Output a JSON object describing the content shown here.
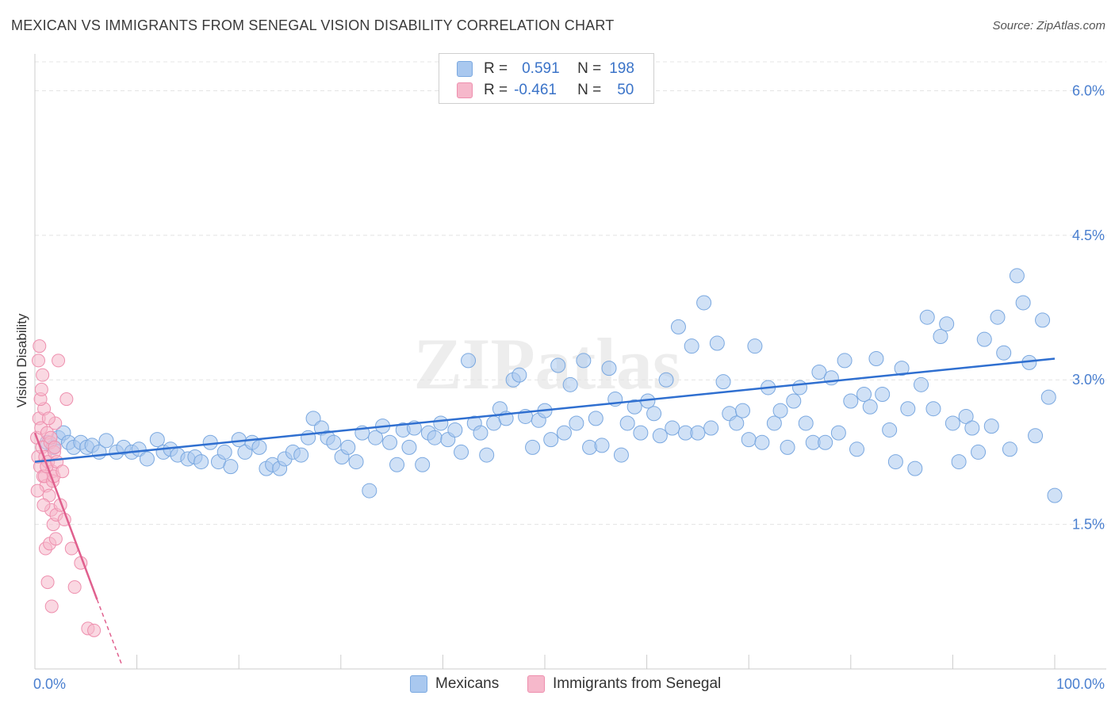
{
  "title": "MEXICAN VS IMMIGRANTS FROM SENEGAL VISION DISABILITY CORRELATION CHART",
  "source": "Source: ZipAtlas.com",
  "watermark": "ZIPatlas",
  "legend": {
    "rows": [
      {
        "r_label": "R =",
        "r_value": "0.591",
        "n_label": "N =",
        "n_value": "198"
      },
      {
        "r_label": "R =",
        "r_value": "-0.461",
        "n_label": "N =",
        "n_value": "50"
      }
    ]
  },
  "bottom_legend": [
    "Mexicans",
    "Immigrants from Senegal"
  ],
  "colors": {
    "blue_fill": "#a9c8ef",
    "blue_stroke": "#7aa8e0",
    "blue_line": "#2f6fd0",
    "pink_fill": "#f6b8cb",
    "pink_stroke": "#ee8fae",
    "pink_line": "#e0608e",
    "axis_label": "#4a7fcf",
    "grid": "#e4e4e4"
  },
  "chart_data": {
    "type": "scatter",
    "title": "MEXICAN VS IMMIGRANTS FROM SENEGAL VISION DISABILITY CORRELATION CHART",
    "xlabel": "",
    "ylabel": "Vision Disability",
    "xlim": [
      0,
      100
    ],
    "ylim": [
      0,
      6.3
    ],
    "x_tick_labels": [
      "0.0%",
      "100.0%"
    ],
    "y_ticks": [
      1.5,
      3.0,
      4.5,
      6.0
    ],
    "y_tick_labels": [
      "1.5%",
      "3.0%",
      "4.5%",
      "6.0%"
    ],
    "grid": true,
    "series": [
      {
        "name": "Mexicans",
        "R": 0.591,
        "N": 198,
        "trend": {
          "x": [
            0,
            100
          ],
          "y": [
            2.15,
            3.22
          ]
        },
        "points": [
          [
            1.2,
            2.35
          ],
          [
            1.8,
            2.3
          ],
          [
            2.3,
            2.4
          ],
          [
            2.8,
            2.45
          ],
          [
            3.3,
            2.35
          ],
          [
            3.8,
            2.3
          ],
          [
            4.5,
            2.35
          ],
          [
            5.1,
            2.3
          ],
          [
            5.6,
            2.32
          ],
          [
            6.3,
            2.25
          ],
          [
            7,
            2.37
          ],
          [
            8,
            2.25
          ],
          [
            8.7,
            2.3
          ],
          [
            9.5,
            2.25
          ],
          [
            10.2,
            2.28
          ],
          [
            11,
            2.18
          ],
          [
            12,
            2.38
          ],
          [
            12.6,
            2.25
          ],
          [
            13.3,
            2.28
          ],
          [
            14,
            2.22
          ],
          [
            15,
            2.18
          ],
          [
            15.7,
            2.2
          ],
          [
            16.3,
            2.15
          ],
          [
            17.2,
            2.35
          ],
          [
            18,
            2.15
          ],
          [
            18.6,
            2.25
          ],
          [
            19.2,
            2.1
          ],
          [
            20,
            2.38
          ],
          [
            20.6,
            2.25
          ],
          [
            21.3,
            2.35
          ],
          [
            22,
            2.3
          ],
          [
            22.7,
            2.08
          ],
          [
            23.3,
            2.12
          ],
          [
            24,
            2.08
          ],
          [
            24.5,
            2.18
          ],
          [
            25.3,
            2.25
          ],
          [
            26.1,
            2.22
          ],
          [
            26.8,
            2.4
          ],
          [
            27.3,
            2.6
          ],
          [
            28.1,
            2.5
          ],
          [
            28.7,
            2.4
          ],
          [
            29.3,
            2.35
          ],
          [
            30.1,
            2.2
          ],
          [
            30.7,
            2.3
          ],
          [
            31.5,
            2.15
          ],
          [
            32.1,
            2.45
          ],
          [
            32.8,
            1.85
          ],
          [
            33.4,
            2.4
          ],
          [
            34.1,
            2.52
          ],
          [
            34.8,
            2.35
          ],
          [
            35.5,
            2.12
          ],
          [
            36.1,
            2.48
          ],
          [
            36.7,
            2.3
          ],
          [
            37.2,
            2.5
          ],
          [
            38,
            2.12
          ],
          [
            38.6,
            2.45
          ],
          [
            39.2,
            2.4
          ],
          [
            39.8,
            2.55
          ],
          [
            40.5,
            2.38
          ],
          [
            41.2,
            2.48
          ],
          [
            41.8,
            2.25
          ],
          [
            42.5,
            3.2
          ],
          [
            43.1,
            2.55
          ],
          [
            43.7,
            2.45
          ],
          [
            44.3,
            2.22
          ],
          [
            45,
            2.55
          ],
          [
            45.6,
            2.7
          ],
          [
            46.2,
            2.6
          ],
          [
            46.9,
            3.0
          ],
          [
            47.5,
            3.05
          ],
          [
            48.1,
            2.62
          ],
          [
            48.8,
            2.3
          ],
          [
            49.4,
            2.58
          ],
          [
            50,
            2.68
          ],
          [
            50.6,
            2.38
          ],
          [
            51.3,
            3.15
          ],
          [
            51.9,
            2.45
          ],
          [
            52.5,
            2.95
          ],
          [
            53.1,
            2.55
          ],
          [
            53.8,
            3.2
          ],
          [
            54.4,
            2.3
          ],
          [
            55,
            2.6
          ],
          [
            55.6,
            2.32
          ],
          [
            56.3,
            3.12
          ],
          [
            56.9,
            2.8
          ],
          [
            57.5,
            2.22
          ],
          [
            58.1,
            2.55
          ],
          [
            58.8,
            2.72
          ],
          [
            59.4,
            2.45
          ],
          [
            60.1,
            2.78
          ],
          [
            60.7,
            2.65
          ],
          [
            61.3,
            2.42
          ],
          [
            61.9,
            3.0
          ],
          [
            62.5,
            2.5
          ],
          [
            63.1,
            3.55
          ],
          [
            63.8,
            2.45
          ],
          [
            64.4,
            3.35
          ],
          [
            65,
            2.45
          ],
          [
            65.6,
            3.8
          ],
          [
            66.3,
            2.5
          ],
          [
            66.9,
            3.38
          ],
          [
            67.5,
            2.98
          ],
          [
            68.1,
            2.65
          ],
          [
            68.8,
            2.55
          ],
          [
            69.4,
            2.68
          ],
          [
            70,
            2.38
          ],
          [
            70.6,
            3.35
          ],
          [
            71.3,
            2.35
          ],
          [
            71.9,
            2.92
          ],
          [
            72.5,
            2.55
          ],
          [
            73.1,
            2.68
          ],
          [
            73.8,
            2.3
          ],
          [
            74.4,
            2.78
          ],
          [
            75,
            2.92
          ],
          [
            75.6,
            2.55
          ],
          [
            76.3,
            2.35
          ],
          [
            76.9,
            3.08
          ],
          [
            77.5,
            2.35
          ],
          [
            78.1,
            3.02
          ],
          [
            78.8,
            2.45
          ],
          [
            79.4,
            3.2
          ],
          [
            80,
            2.78
          ],
          [
            80.6,
            2.28
          ],
          [
            81.3,
            2.85
          ],
          [
            81.9,
            2.72
          ],
          [
            82.5,
            3.22
          ],
          [
            83.1,
            2.85
          ],
          [
            83.8,
            2.48
          ],
          [
            84.4,
            2.15
          ],
          [
            85,
            3.12
          ],
          [
            85.6,
            2.7
          ],
          [
            86.3,
            2.08
          ],
          [
            86.9,
            2.95
          ],
          [
            87.5,
            3.65
          ],
          [
            88.1,
            2.7
          ],
          [
            88.8,
            3.45
          ],
          [
            89.4,
            3.58
          ],
          [
            90,
            2.55
          ],
          [
            90.6,
            2.15
          ],
          [
            91.3,
            2.62
          ],
          [
            91.9,
            2.5
          ],
          [
            92.5,
            2.25
          ],
          [
            93.1,
            3.42
          ],
          [
            93.8,
            2.52
          ],
          [
            94.4,
            3.65
          ],
          [
            95,
            3.28
          ],
          [
            95.6,
            2.28
          ],
          [
            96.3,
            4.08
          ],
          [
            96.9,
            3.8
          ],
          [
            97.5,
            3.18
          ],
          [
            98.1,
            2.42
          ],
          [
            98.8,
            3.62
          ],
          [
            99.4,
            2.82
          ],
          [
            100,
            1.8
          ]
        ]
      },
      {
        "name": "Immigrants from Senegal",
        "R": -0.461,
        "N": 50,
        "trend": {
          "x": [
            0,
            6.1
          ],
          "y": [
            2.45,
            0.72
          ],
          "dash_to": {
            "x": 8.5,
            "y": 0.05
          }
        },
        "points": [
          [
            0.2,
            2.4
          ],
          [
            0.3,
            2.2
          ],
          [
            0.4,
            2.6
          ],
          [
            0.5,
            2.1
          ],
          [
            0.6,
            2.5
          ],
          [
            0.7,
            2.3
          ],
          [
            0.8,
            2.0
          ],
          [
            0.9,
            2.7
          ],
          [
            1.0,
            2.2
          ],
          [
            1.1,
            1.9
          ],
          [
            1.2,
            2.45
          ],
          [
            1.3,
            2.15
          ],
          [
            1.4,
            1.8
          ],
          [
            1.5,
            2.35
          ],
          [
            1.6,
            1.65
          ],
          [
            1.7,
            2.05
          ],
          [
            1.8,
            1.5
          ],
          [
            1.9,
            2.25
          ],
          [
            2.0,
            2.55
          ],
          [
            2.1,
            1.6
          ],
          [
            0.25,
            1.85
          ],
          [
            0.35,
            3.2
          ],
          [
            0.45,
            3.35
          ],
          [
            0.55,
            2.8
          ],
          [
            0.65,
            2.9
          ],
          [
            0.75,
            3.05
          ],
          [
            0.85,
            1.7
          ],
          [
            0.95,
            2.0
          ],
          [
            1.05,
            1.25
          ],
          [
            1.15,
            2.1
          ],
          [
            1.25,
            0.9
          ],
          [
            1.35,
            2.6
          ],
          [
            1.45,
            1.3
          ],
          [
            1.55,
            2.4
          ],
          [
            1.65,
            0.65
          ],
          [
            1.75,
            1.95
          ],
          [
            1.85,
            2.0
          ],
          [
            1.95,
            2.3
          ],
          [
            2.05,
            1.35
          ],
          [
            2.15,
            2.15
          ],
          [
            2.3,
            3.2
          ],
          [
            2.5,
            1.7
          ],
          [
            2.7,
            2.05
          ],
          [
            2.9,
            1.55
          ],
          [
            3.1,
            2.8
          ],
          [
            3.6,
            1.25
          ],
          [
            3.9,
            0.85
          ],
          [
            4.5,
            1.1
          ],
          [
            5.2,
            0.42
          ],
          [
            5.8,
            0.4
          ]
        ]
      }
    ]
  }
}
